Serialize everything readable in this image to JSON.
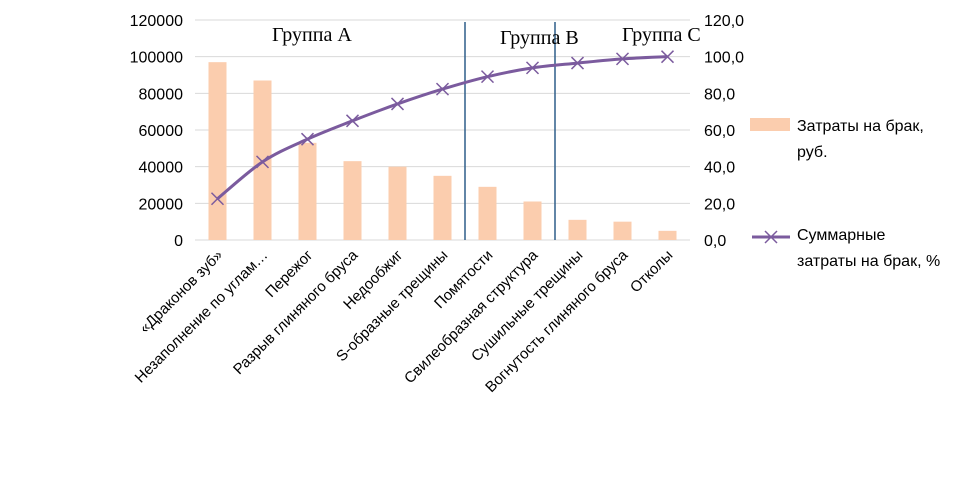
{
  "chart_data": {
    "type": "bar",
    "categories": [
      "«Драконов зуб»",
      "Незаполнение по углам…",
      "Пережог",
      "Разрыв глиняного бруса",
      "Недообжиг",
      "S-образные трещины",
      "Помятости",
      "Свилеобразная структура",
      "Сушильные трещины",
      "Вогнутость глиняного бруса",
      "Отколы"
    ],
    "series": [
      {
        "name": "Затраты на брак, руб.",
        "type": "bar",
        "axis": "left",
        "color": "#FBCDAE",
        "values": [
          97000,
          87000,
          53000,
          43000,
          40000,
          35000,
          29000,
          21000,
          11000,
          10000,
          5000
        ]
      },
      {
        "name": "Суммарные затраты на брак, %",
        "type": "line",
        "axis": "right",
        "color": "#7B5B9E",
        "marker": "x",
        "values": [
          22.5,
          42.6,
          55.0,
          65.0,
          74.2,
          82.3,
          89.1,
          93.9,
          96.5,
          98.8,
          100.0
        ]
      }
    ],
    "y_left": {
      "ylim": [
        0,
        120000
      ],
      "ticks": [
        "0",
        "20000",
        "40000",
        "60000",
        "80000",
        "100000",
        "120000"
      ]
    },
    "y_right": {
      "ylim": [
        0,
        120
      ],
      "ticks": [
        "0,0",
        "20,0",
        "40,0",
        "60,0",
        "80,0",
        "100,0",
        "120,0"
      ]
    },
    "grid": true,
    "legend": "right",
    "legend_labels": {
      "bars": [
        "Затраты на брак,",
        "руб."
      ],
      "line": [
        "Суммарные",
        "затраты на брак, %"
      ]
    },
    "group_labels": [
      "Группа А",
      "Группа В",
      "Группа С"
    ],
    "group_dividers_after": [
      6,
      8
    ],
    "divider_color": "#2E5F8A"
  }
}
